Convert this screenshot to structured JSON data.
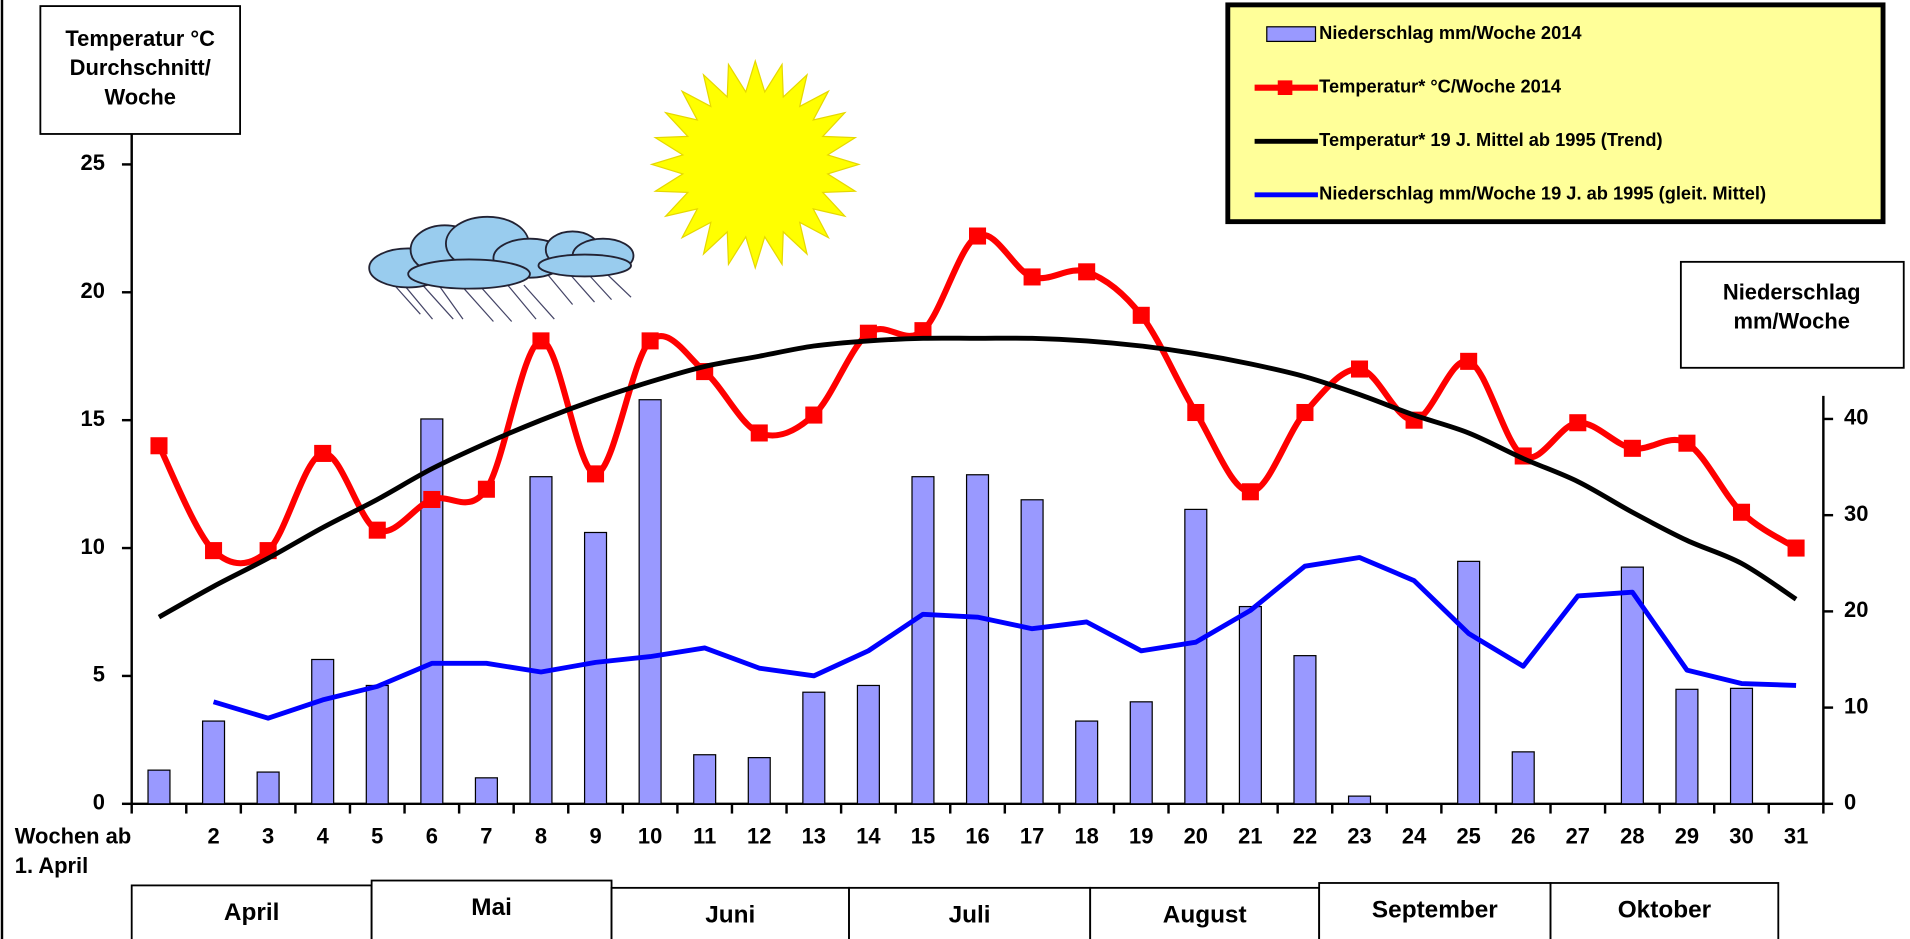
{
  "chart_data": {
    "type": "combo",
    "ytitle": [
      "Temperatur °C",
      "Durchschnitt/",
      "Woche"
    ],
    "y2title": [
      "Niederschlag",
      "mm/Woche"
    ],
    "xlabel": [
      "Wochen ab",
      "1. April"
    ],
    "categories": [
      null,
      "2",
      "3",
      "4",
      "5",
      "6",
      "7",
      "8",
      "9",
      "10",
      "11",
      "12",
      "13",
      "14",
      "15",
      "16",
      "17",
      "18",
      "19",
      "20",
      "21",
      "22",
      "23",
      "24",
      "25",
      "26",
      "27",
      "28",
      "29",
      "30",
      "31"
    ],
    "months": [
      "April",
      "Mai",
      "Juni",
      "Juli",
      "August",
      "September",
      "Oktober"
    ],
    "ylim": [
      0,
      25
    ],
    "yticks": [
      0,
      5,
      10,
      15,
      20,
      25
    ],
    "y2lim": [
      0,
      40
    ],
    "y2ticks": [
      0,
      10,
      20,
      30,
      40
    ],
    "series": [
      {
        "name": "Niederschlag mm/Woche 2014",
        "type": "bar",
        "axis": "y2",
        "color": "#9999ff",
        "values": [
          3.5,
          8.6,
          3.3,
          15,
          12.3,
          40,
          2.7,
          34,
          28.2,
          42,
          5.1,
          4.8,
          11.6,
          12.3,
          34,
          34.2,
          31.6,
          8.6,
          10.6,
          30.6,
          20.5,
          15.4,
          0.8,
          0,
          25.2,
          5.4,
          0,
          24.6,
          11.9,
          12,
          0
        ]
      },
      {
        "name": "Temperatur* °C/Woche 2014",
        "type": "line",
        "color": "#ff0000",
        "markers": true,
        "values": [
          14,
          9.9,
          9.9,
          13.7,
          10.7,
          11.9,
          12.3,
          18.1,
          12.9,
          18.1,
          16.9,
          14.5,
          15.2,
          18.4,
          18.5,
          22.2,
          20.6,
          20.8,
          19.1,
          15.3,
          12.2,
          15.3,
          17,
          15,
          17.3,
          13.6,
          14.9,
          13.9,
          14.1,
          11.4,
          10
        ]
      },
      {
        "name": "Temperatur* 19 J. Mittel ab 1995 (Trend)",
        "type": "line",
        "color": "#000000",
        "values": [
          7.3,
          8.5,
          9.6,
          10.8,
          11.9,
          13.1,
          14.1,
          15,
          15.8,
          16.5,
          17.1,
          17.5,
          17.9,
          18.1,
          18.2,
          18.2,
          18.2,
          18.1,
          17.9,
          17.6,
          17.2,
          16.7,
          16,
          15.2,
          14.5,
          13.5,
          12.6,
          11.4,
          10.3,
          9.4,
          8
        ]
      },
      {
        "name": "Niederschlag mm/Woche 19 J. ab 1995 (gleit. Mittel)",
        "type": "line",
        "axis": "y2",
        "color": "#0000ff",
        "values": [
          null,
          10.6,
          8.9,
          10.8,
          12.2,
          14.6,
          14.6,
          13.7,
          14.7,
          15.3,
          16.2,
          14.1,
          13.3,
          15.9,
          19.7,
          19.4,
          18.2,
          18.9,
          15.9,
          16.8,
          20.1,
          24.7,
          25.6,
          23.2,
          17.7,
          14.3,
          21.6,
          22,
          13.9,
          12.5,
          12.3
        ]
      }
    ]
  }
}
